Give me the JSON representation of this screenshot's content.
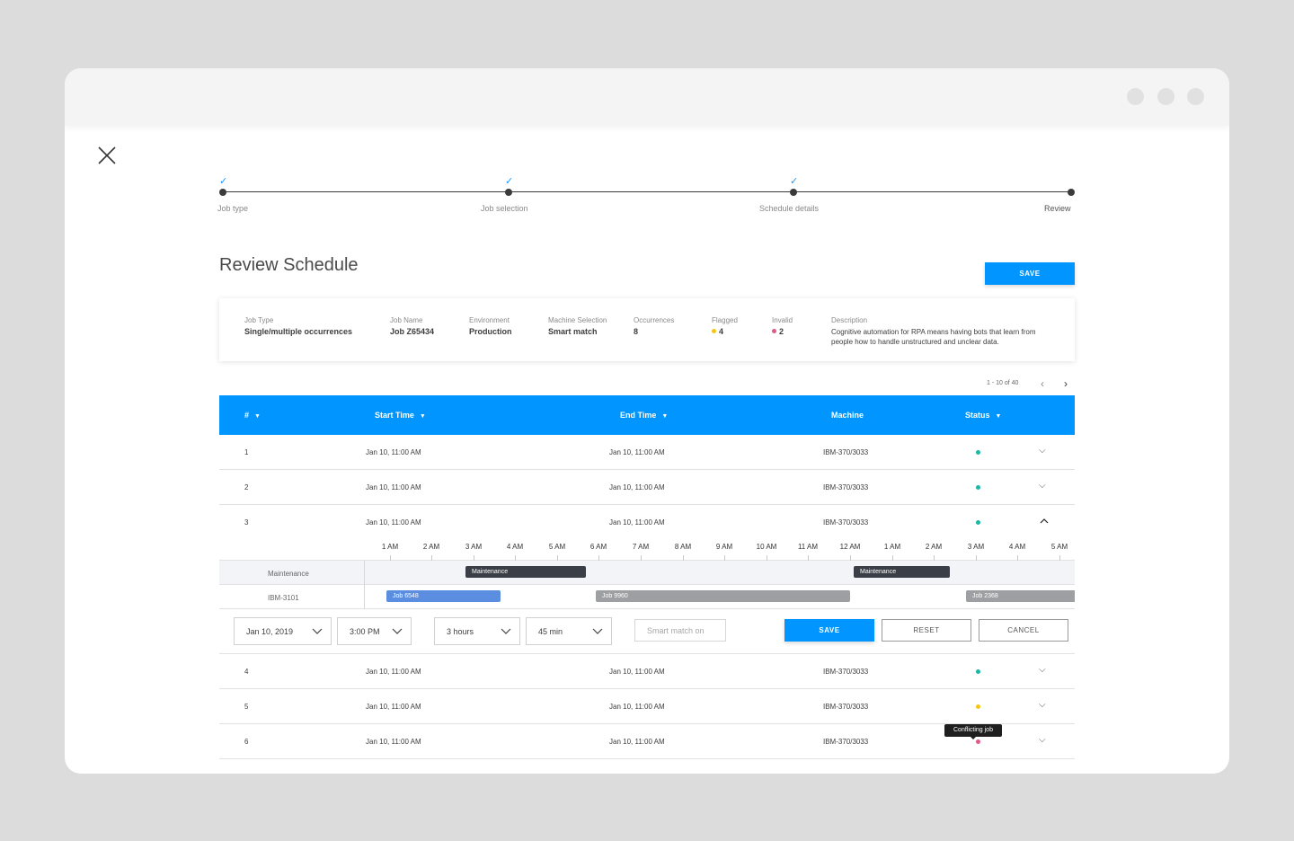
{
  "stepper": {
    "steps": [
      {
        "label": "Job type",
        "done": true
      },
      {
        "label": "Job selection",
        "done": true
      },
      {
        "label": "Schedule details",
        "done": true
      },
      {
        "label": "Review",
        "done": false
      }
    ]
  },
  "page": {
    "title": "Review Schedule",
    "save_label": "SAVE"
  },
  "summary": {
    "job_type": {
      "label": "Job Type",
      "value": "Single/multiple occurrences"
    },
    "job_name": {
      "label": "Job Name",
      "value": "Job Z65434"
    },
    "environment": {
      "label": "Environment",
      "value": "Production"
    },
    "machine_selection": {
      "label": "Machine Selection",
      "value": "Smart match"
    },
    "occurrences": {
      "label": "Occurrences",
      "value": "8"
    },
    "flagged": {
      "label": "Flagged",
      "value": "4"
    },
    "invalid": {
      "label": "Invalid",
      "value": "2"
    },
    "description": {
      "label": "Description",
      "value": "Cognitive automation for RPA means having bots that learn from people how to handle unstructured and unclear data."
    }
  },
  "pagination": {
    "text": "1 - 10  of  40"
  },
  "table": {
    "headers": {
      "num": "#",
      "start": "Start Time",
      "end": "End Time",
      "machine": "Machine",
      "status": "Status"
    },
    "rows": [
      {
        "num": "1",
        "start": "Jan 10, 11:00 AM",
        "end": "Jan 10, 11:00 AM",
        "machine": "IBM-370/3033",
        "status": "ok"
      },
      {
        "num": "2",
        "start": "Jan 10, 11:00 AM",
        "end": "Jan 10, 11:00 AM",
        "machine": "IBM-370/3033",
        "status": "ok"
      },
      {
        "num": "3",
        "start": "Jan 10, 11:00 AM",
        "end": "Jan 10, 11:00 AM",
        "machine": "IBM-370/3033",
        "status": "ok"
      },
      {
        "num": "4",
        "start": "Jan 10, 11:00 AM",
        "end": "Jan 10, 11:00 AM",
        "machine": "IBM-370/3033",
        "status": "ok"
      },
      {
        "num": "5",
        "start": "Jan 10, 11:00 AM",
        "end": "Jan 10, 11:00 AM",
        "machine": "IBM-370/3033",
        "status": "flagged"
      },
      {
        "num": "6",
        "start": "Jan 10, 11:00 AM",
        "end": "Jan 10, 11:00 AM",
        "machine": "IBM-370/3033",
        "status": "invalid"
      }
    ]
  },
  "timeline": {
    "hours": [
      "1 AM",
      "2 AM",
      "3 AM",
      "4 AM",
      "5 AM",
      "6 AM",
      "7 AM",
      "8 AM",
      "9 AM",
      "10 AM",
      "11 AM",
      "12 AM",
      "1 AM",
      "2 AM",
      "3 AM",
      "4 AM",
      "5 AM"
    ],
    "lanes": [
      {
        "label": "Maintenance",
        "bars": [
          {
            "label": "Maintenance"
          },
          {
            "label": "Maintenance"
          }
        ]
      },
      {
        "label": "IBM-3101",
        "bars": [
          {
            "label": "Job 6548"
          },
          {
            "label": "Job 9960"
          },
          {
            "label": "Job 2368"
          }
        ]
      }
    ]
  },
  "edit": {
    "date": "Jan 10, 2019",
    "time": "3:00 PM",
    "hours": "3 hours",
    "minutes": "45 min",
    "smart_match_placeholder": "Smart match on",
    "save_label": "SAVE",
    "reset_label": "RESET",
    "cancel_label": "CANCEL"
  },
  "tooltip": {
    "text": "Conflicting job"
  },
  "colors": {
    "accent": "#0095ff",
    "status_ok": "#1bb7a5",
    "status_flagged": "#f5c518",
    "status_invalid": "#e2588a",
    "bar_dark": "#3a3f47",
    "bar_blue": "#5b8ee0",
    "bar_gray": "#9e9fa3"
  }
}
